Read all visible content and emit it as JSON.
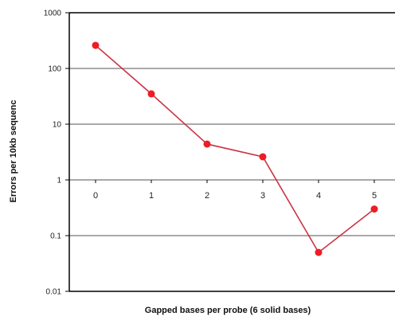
{
  "chart_data": {
    "type": "line",
    "title": "",
    "xlabel": "Gapped bases per probe (6 solid bases)",
    "ylabel": "Errors per 10kb sequenc",
    "yscale": "log",
    "ylim": [
      0.01,
      1000
    ],
    "y_ticks": [
      "1000",
      "100",
      "10",
      "1",
      "0.1",
      "0.01"
    ],
    "y_tick_values": [
      1000,
      100,
      10,
      1,
      0.1,
      0.01
    ],
    "x_ticks": [
      "0",
      "1",
      "2",
      "3",
      "4",
      "5"
    ],
    "x": [
      0,
      1,
      2,
      3,
      4,
      5
    ],
    "series": [
      {
        "values": [
          260,
          35,
          4.4,
          2.6,
          0.05,
          0.3
        ]
      }
    ],
    "grid": true,
    "legend": "none",
    "colors": {
      "line": "#cc3344",
      "marker": "#ee1c25",
      "grid": "#a9a9a9",
      "axis": "#000000"
    }
  }
}
